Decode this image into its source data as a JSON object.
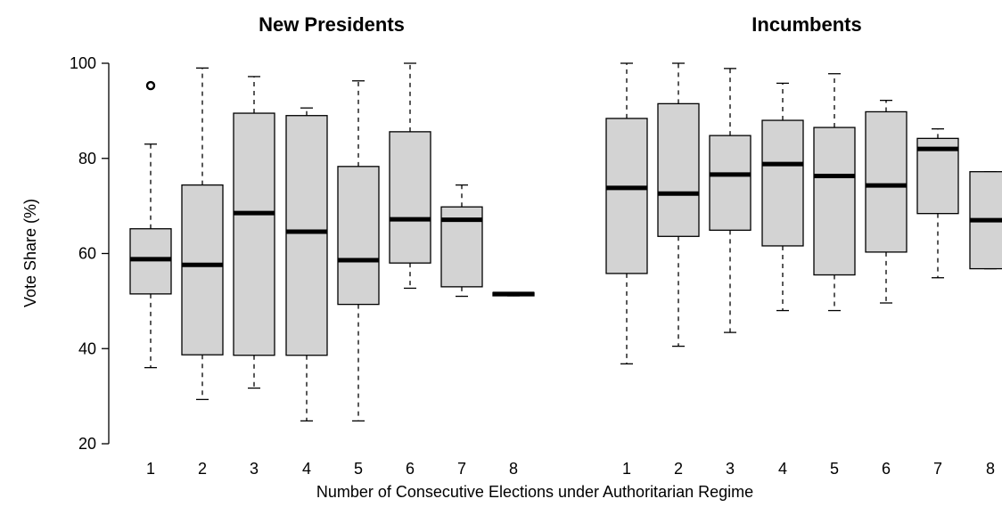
{
  "chart_data": {
    "type": "boxplot",
    "ylabel": "Vote Share (%)",
    "xlabel": "Number of Consecutive Elections under Authoritarian Regime",
    "ylim": [
      20,
      100
    ],
    "yticks": [
      20,
      40,
      60,
      80,
      100
    ],
    "box_fill": "#d3d3d3",
    "panels": [
      {
        "title": "New Presidents",
        "categories": [
          "1",
          "2",
          "3",
          "4",
          "5",
          "6",
          "7",
          "8"
        ],
        "boxes": [
          {
            "min": 36,
            "q1": 51.5,
            "median": 58.8,
            "q3": 65.2,
            "max": 83,
            "outliers": [
              95.3
            ]
          },
          {
            "min": 29.3,
            "q1": 38.7,
            "median": 57.6,
            "q3": 74.4,
            "max": 99,
            "outliers": []
          },
          {
            "min": 31.7,
            "q1": 38.6,
            "median": 68.5,
            "q3": 89.5,
            "max": 97.2,
            "outliers": []
          },
          {
            "min": 24.8,
            "q1": 38.6,
            "median": 64.6,
            "q3": 89,
            "max": 90.6,
            "outliers": []
          },
          {
            "min": 24.8,
            "q1": 49.3,
            "median": 58.6,
            "q3": 78.3,
            "max": 96.3,
            "outliers": []
          },
          {
            "min": 52.7,
            "q1": 58,
            "median": 67.2,
            "q3": 85.6,
            "max": 100,
            "outliers": []
          },
          {
            "min": 51,
            "q1": 53,
            "median": 67.1,
            "q3": 69.8,
            "max": 74.4,
            "outliers": []
          },
          {
            "min": 51.1,
            "q1": 51.1,
            "median": 51.5,
            "q3": 51.8,
            "max": 51.8,
            "outliers": []
          }
        ]
      },
      {
        "title": "Incumbents",
        "categories": [
          "1",
          "2",
          "3",
          "4",
          "5",
          "6",
          "7",
          "8"
        ],
        "boxes": [
          {
            "min": 36.8,
            "q1": 55.8,
            "median": 73.8,
            "q3": 88.4,
            "max": 100,
            "outliers": []
          },
          {
            "min": 40.5,
            "q1": 63.6,
            "median": 72.6,
            "q3": 91.5,
            "max": 100,
            "outliers": []
          },
          {
            "min": 43.4,
            "q1": 64.9,
            "median": 76.6,
            "q3": 84.8,
            "max": 98.9,
            "outliers": []
          },
          {
            "min": 48,
            "q1": 61.6,
            "median": 78.8,
            "q3": 88,
            "max": 95.8,
            "outliers": []
          },
          {
            "min": 48,
            "q1": 55.5,
            "median": 76.3,
            "q3": 86.5,
            "max": 97.8,
            "outliers": []
          },
          {
            "min": 49.6,
            "q1": 60.3,
            "median": 74.3,
            "q3": 89.8,
            "max": 92.2,
            "outliers": []
          },
          {
            "min": 54.9,
            "q1": 68.4,
            "median": 82,
            "q3": 84.2,
            "max": 86.2,
            "outliers": []
          },
          {
            "min": 56.8,
            "q1": 56.8,
            "median": 67,
            "q3": 77.2,
            "max": 77.2,
            "outliers": []
          }
        ]
      }
    ]
  }
}
